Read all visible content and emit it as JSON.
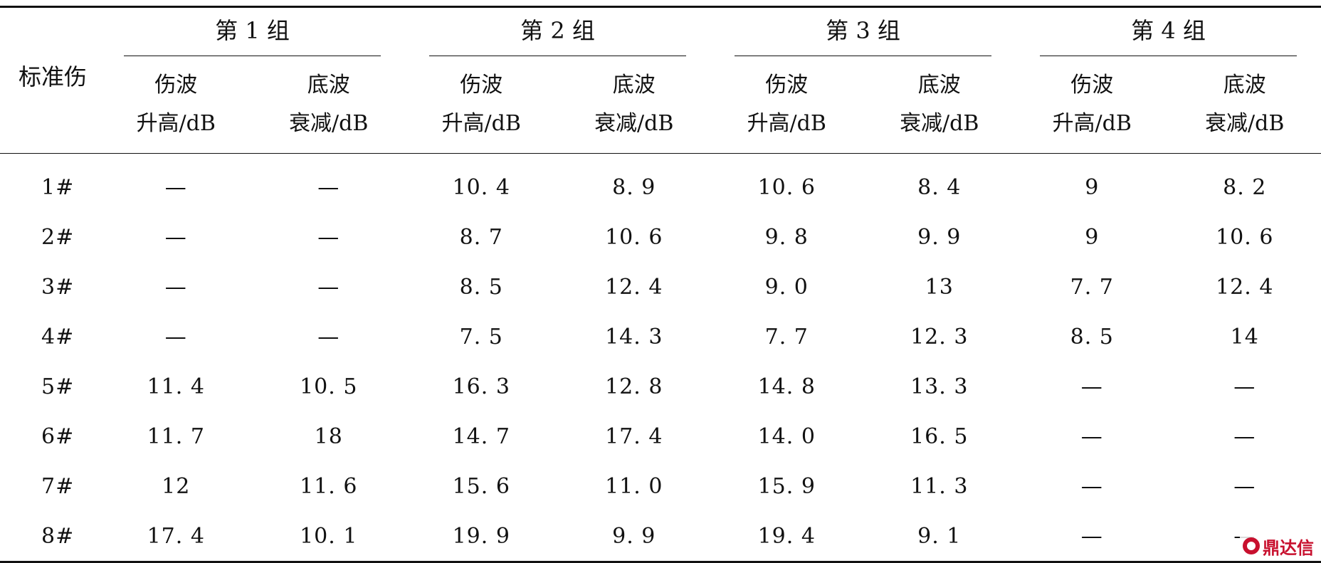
{
  "table": {
    "label_header": "标准伤",
    "groups": [
      "第 1 组",
      "第 2 组",
      "第 3 组",
      "第 4 组"
    ],
    "sub_headers": [
      {
        "line1": "伤波",
        "line2": "升高/dB"
      },
      {
        "line1": "底波",
        "line2": "衰减/dB"
      }
    ],
    "rows": [
      {
        "label": "1#",
        "cells": [
          "—",
          "—",
          "10. 4",
          "8. 9",
          "10. 6",
          "8. 4",
          "9",
          "8. 2"
        ]
      },
      {
        "label": "2#",
        "cells": [
          "—",
          "—",
          "8. 7",
          "10. 6",
          "9. 8",
          "9. 9",
          "9",
          "10. 6"
        ]
      },
      {
        "label": "3#",
        "cells": [
          "—",
          "—",
          "8. 5",
          "12. 4",
          "9. 0",
          "13",
          "7. 7",
          "12. 4"
        ]
      },
      {
        "label": "4#",
        "cells": [
          "—",
          "—",
          "7. 5",
          "14. 3",
          "7. 7",
          "12. 3",
          "8. 5",
          "14"
        ]
      },
      {
        "label": "5#",
        "cells": [
          "11. 4",
          "10. 5",
          "16. 3",
          "12. 8",
          "14. 8",
          "13. 3",
          "—",
          "—"
        ]
      },
      {
        "label": "6#",
        "cells": [
          "11. 7",
          "18",
          "14. 7",
          "17. 4",
          "14. 0",
          "16. 5",
          "—",
          "—"
        ]
      },
      {
        "label": "7#",
        "cells": [
          "12",
          "11. 6",
          "15. 6",
          "11. 0",
          "15. 9",
          "11. 3",
          "—",
          "—"
        ]
      },
      {
        "label": "8#",
        "cells": [
          "17. 4",
          "10. 1",
          "19. 9",
          "9. 9",
          "19. 4",
          "9. 1",
          "—",
          "—"
        ]
      }
    ]
  },
  "watermark": {
    "text": "鼎达信",
    "color": "#c8102e"
  }
}
